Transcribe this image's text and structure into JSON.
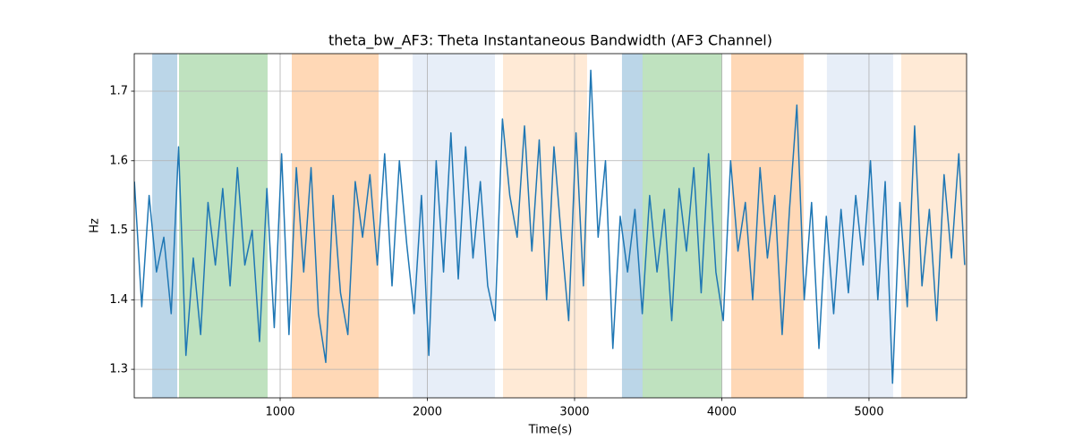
{
  "chart_data": {
    "type": "line",
    "title": "theta_bw_AF3: Theta Instantaneous Bandwidth (AF3 Channel)",
    "x_label": "Time(s)",
    "y_label": "Hz",
    "color": "#1f77b4",
    "grid": true,
    "xlim": [
      9,
      5663
    ],
    "ylim": [
      1.259,
      1.754
    ],
    "xticks": [
      1000,
      2000,
      3000,
      4000,
      5000
    ],
    "yticks": [
      1.3,
      1.4,
      1.5,
      1.6,
      1.7
    ],
    "shaded_regions": [
      {
        "x": [
          131,
          301
        ],
        "color": "#1f77b4",
        "alpha": 0.3
      },
      {
        "x": [
          313,
          915
        ],
        "color": "#2ca02c",
        "alpha": 0.3
      },
      {
        "x": [
          1079,
          1669
        ],
        "color": "#ff7f0e",
        "alpha": 0.3
      },
      {
        "x": [
          1900,
          2459
        ],
        "color": "#aec7e8",
        "alpha": 0.3
      },
      {
        "x": [
          2514,
          3085
        ],
        "color": "#ffbb78",
        "alpha": 0.3
      },
      {
        "x": [
          3322,
          3462
        ],
        "color": "#1f77b4",
        "alpha": 0.3
      },
      {
        "x": [
          3462,
          4003
        ],
        "color": "#2ca02c",
        "alpha": 0.3
      },
      {
        "x": [
          4064,
          4556
        ],
        "color": "#ff7f0e",
        "alpha": 0.3
      },
      {
        "x": [
          4714,
          5164
        ],
        "color": "#aec7e8",
        "alpha": 0.3
      },
      {
        "x": [
          5219,
          5663
        ],
        "color": "#ffbb78",
        "alpha": 0.3
      }
    ],
    "x": [
      10,
      60,
      110,
      160,
      210,
      260,
      310,
      360,
      410,
      460,
      510,
      560,
      610,
      660,
      710,
      760,
      810,
      860,
      910,
      960,
      1010,
      1060,
      1110,
      1160,
      1210,
      1260,
      1310,
      1360,
      1410,
      1460,
      1510,
      1560,
      1610,
      1660,
      1710,
      1760,
      1810,
      1860,
      1910,
      1960,
      2010,
      2060,
      2110,
      2160,
      2210,
      2260,
      2310,
      2360,
      2410,
      2460,
      2510,
      2560,
      2610,
      2660,
      2710,
      2760,
      2810,
      2860,
      2910,
      2960,
      3010,
      3060,
      3110,
      3160,
      3210,
      3260,
      3310,
      3360,
      3410,
      3460,
      3510,
      3560,
      3610,
      3660,
      3710,
      3760,
      3810,
      3860,
      3910,
      3960,
      4010,
      4060,
      4110,
      4160,
      4210,
      4260,
      4310,
      4360,
      4410,
      4460,
      4510,
      4560,
      4610,
      4660,
      4710,
      4760,
      4810,
      4860,
      4910,
      4960,
      5010,
      5060,
      5110,
      5160,
      5210,
      5260,
      5310,
      5360,
      5410,
      5460,
      5510,
      5560,
      5610,
      5650
    ],
    "values": [
      1.57,
      1.39,
      1.55,
      1.44,
      1.49,
      1.38,
      1.62,
      1.32,
      1.46,
      1.35,
      1.54,
      1.45,
      1.56,
      1.42,
      1.59,
      1.45,
      1.5,
      1.34,
      1.56,
      1.36,
      1.61,
      1.35,
      1.59,
      1.44,
      1.59,
      1.38,
      1.31,
      1.55,
      1.41,
      1.35,
      1.57,
      1.49,
      1.58,
      1.45,
      1.61,
      1.42,
      1.6,
      1.48,
      1.38,
      1.55,
      1.32,
      1.6,
      1.44,
      1.64,
      1.43,
      1.62,
      1.46,
      1.57,
      1.42,
      1.37,
      1.66,
      1.55,
      1.49,
      1.65,
      1.47,
      1.63,
      1.4,
      1.62,
      1.49,
      1.37,
      1.64,
      1.42,
      1.73,
      1.49,
      1.6,
      1.33,
      1.52,
      1.44,
      1.53,
      1.38,
      1.55,
      1.44,
      1.53,
      1.37,
      1.56,
      1.47,
      1.59,
      1.41,
      1.61,
      1.44,
      1.37,
      1.6,
      1.47,
      1.54,
      1.4,
      1.59,
      1.46,
      1.55,
      1.35,
      1.53,
      1.68,
      1.4,
      1.54,
      1.33,
      1.52,
      1.38,
      1.53,
      1.41,
      1.55,
      1.45,
      1.6,
      1.4,
      1.57,
      1.28,
      1.54,
      1.39,
      1.65,
      1.42,
      1.53,
      1.37,
      1.58,
      1.46,
      1.61,
      1.45
    ]
  }
}
